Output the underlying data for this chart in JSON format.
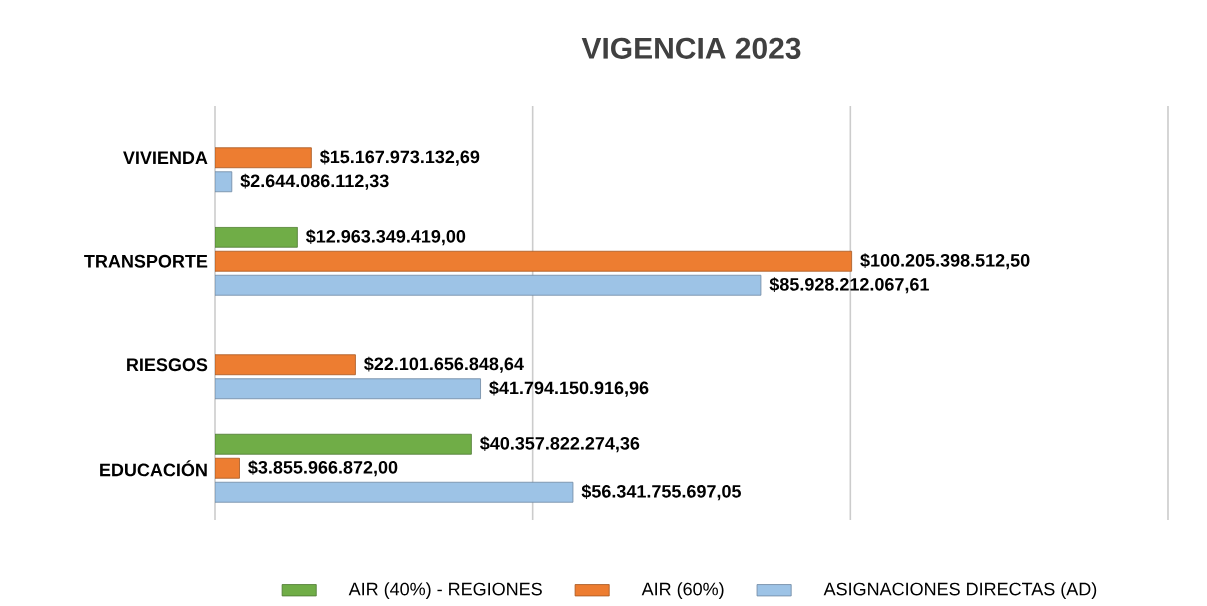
{
  "chart_data": {
    "type": "bar",
    "orientation": "horizontal",
    "title": "VIGENCIA 2023",
    "categories": [
      "VIVIENDA",
      "TRANSPORTE",
      "RIESGOS",
      "EDUCACIÓN"
    ],
    "series": [
      {
        "name": "AIR (40%) - REGIONES",
        "color": "#70ad47",
        "values": [
          null,
          12963349419.0,
          null,
          40357822274.36
        ],
        "value_labels": [
          null,
          "$12.963.349.419,00",
          null,
          "$40.357.822.274,36"
        ]
      },
      {
        "name": "AIR (60%)",
        "color": "#ed7d31",
        "values": [
          15167973132.69,
          100205398512.5,
          22101656848.64,
          3855966872.0
        ],
        "value_labels": [
          "$15.167.973.132,69",
          "$100.205.398.512,50",
          "$22.101.656.848,64",
          "$3.855.966.872,00"
        ]
      },
      {
        "name": "ASIGNACIONES DIRECTAS (AD)",
        "color": "#9dc3e6",
        "values": [
          2644086112.33,
          85928212067.61,
          41794150916.96,
          56341755697.05
        ],
        "value_labels": [
          "$2.644.086.112,33",
          "$85.928.212.067,61",
          "$41.794.150.916,96",
          "$56.341.755.697,05"
        ]
      }
    ],
    "xlim": [
      0,
      150000000000
    ],
    "xticks": [
      {
        "value": 0,
        "label": null
      },
      {
        "value": 50000000000,
        "label": null
      },
      {
        "value": 100000000000,
        "label": null
      },
      {
        "value": 150000000000,
        "label": null
      }
    ],
    "grid": "x",
    "tick_labels": "y",
    "legend": "bottom"
  }
}
